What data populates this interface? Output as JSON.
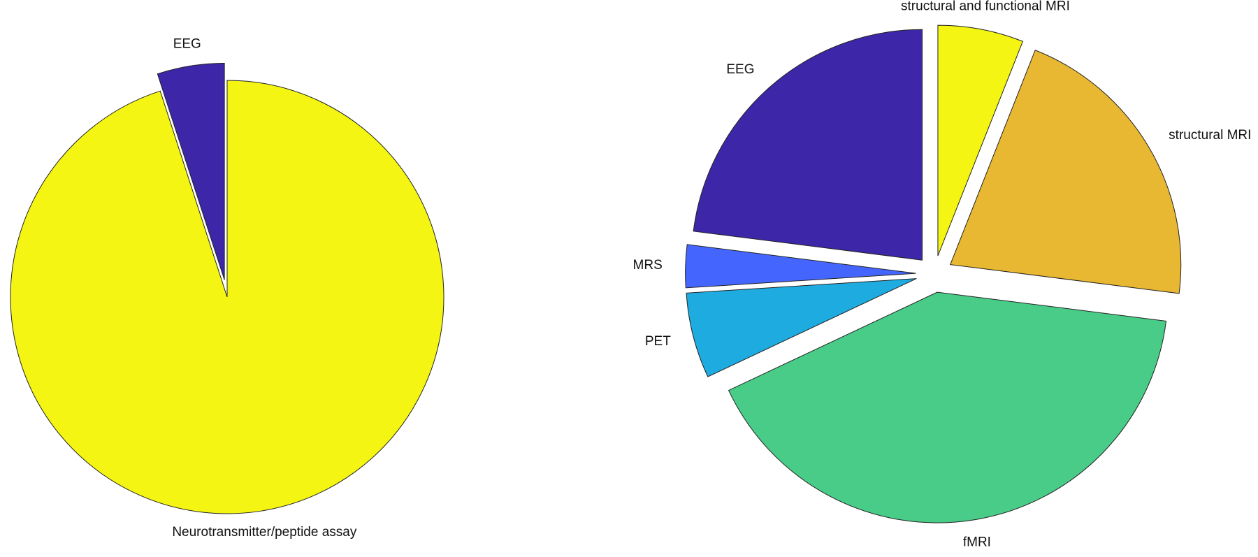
{
  "chart_data": [
    {
      "type": "pie",
      "categories": [
        "Neurotransmitter/peptide assay",
        "EEG"
      ],
      "values": [
        95,
        5
      ],
      "colors": [
        "#f5f514",
        "#3d27a8"
      ],
      "explode": [
        false,
        true
      ]
    },
    {
      "type": "pie",
      "categories": [
        "structural and functional MRI",
        "structural MRI",
        "fMRI",
        "PET",
        "MRS",
        "EEG"
      ],
      "values": [
        6,
        21,
        41,
        6,
        3,
        23
      ],
      "colors": [
        "#f5f514",
        "#e8b832",
        "#48cc88",
        "#1eabdf",
        "#4466ff",
        "#3d27a8"
      ],
      "explode": [
        true,
        true,
        true,
        true,
        true,
        true
      ]
    }
  ]
}
